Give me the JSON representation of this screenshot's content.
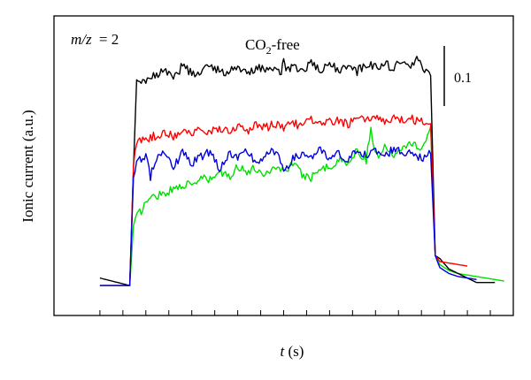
{
  "chart_data": {
    "type": "line",
    "annotation_mz_var": "m/z",
    "annotation_mz_value": "= 2",
    "title_pre": "CO",
    "title_sub": "2",
    "title_post": "-free",
    "scale_bar_label": "0.1",
    "scale_bar_value": 0.1,
    "xlabel_var": "t",
    "xlabel_unit": " (s)",
    "ylabel": "Ionic current (a.u.)",
    "xlim": [
      0,
      100
    ],
    "ylim": [
      0,
      1
    ],
    "x_minor_ticks": [
      10,
      15,
      20,
      25,
      30,
      35,
      40,
      45,
      50,
      55,
      60,
      65,
      70,
      75,
      80,
      85,
      90,
      95
    ],
    "grid": false,
    "legend": "none",
    "series": [
      {
        "color": "#000000",
        "x": [
          10,
          16.5,
          17.3,
          18,
          20,
          22,
          24,
          26,
          28,
          30,
          32,
          34,
          36,
          38,
          40,
          42,
          44,
          46,
          48,
          49.5,
          50,
          50.5,
          52,
          54,
          56,
          58,
          60,
          62,
          64,
          66,
          68,
          70,
          72,
          74,
          76,
          78,
          79,
          80,
          82,
          83,
          84,
          86,
          88,
          90,
          92,
          94,
          96
        ],
        "y": [
          0.125,
          0.1,
          0.49,
          0.775,
          0.79,
          0.8,
          0.825,
          0.79,
          0.835,
          0.81,
          0.805,
          0.84,
          0.815,
          0.81,
          0.84,
          0.8,
          0.83,
          0.82,
          0.815,
          0.81,
          0.87,
          0.82,
          0.83,
          0.815,
          0.845,
          0.81,
          0.84,
          0.82,
          0.83,
          0.815,
          0.84,
          0.83,
          0.845,
          0.82,
          0.86,
          0.83,
          0.87,
          0.825,
          0.8,
          0.2,
          0.19,
          0.155,
          0.14,
          0.125,
          0.11,
          0.11,
          0.11
        ]
      },
      {
        "color": "#ff0000",
        "x": [
          10,
          16.5,
          17.3,
          18,
          20,
          22,
          24,
          26,
          28,
          30,
          32,
          34,
          36,
          38,
          40,
          42,
          44,
          46,
          48,
          50,
          52,
          54,
          56,
          58,
          60,
          62,
          64,
          66,
          68,
          70,
          72,
          74,
          76,
          78,
          80,
          82,
          83,
          84,
          86,
          88,
          90
        ],
        "y": [
          0.1,
          0.1,
          0.5,
          0.58,
          0.59,
          0.6,
          0.61,
          0.6,
          0.62,
          0.61,
          0.615,
          0.61,
          0.625,
          0.62,
          0.63,
          0.61,
          0.64,
          0.625,
          0.64,
          0.63,
          0.645,
          0.63,
          0.655,
          0.635,
          0.645,
          0.65,
          0.64,
          0.655,
          0.65,
          0.665,
          0.65,
          0.66,
          0.65,
          0.655,
          0.645,
          0.64,
          0.2,
          0.18,
          0.175,
          0.17,
          0.165
        ]
      },
      {
        "color": "#00e000",
        "x": [
          10,
          16.5,
          17.3,
          18,
          19,
          20,
          22,
          24,
          26,
          28,
          30,
          32,
          34,
          36,
          38,
          40,
          42,
          44,
          46,
          48,
          50,
          52,
          54,
          56,
          58,
          60,
          62,
          64,
          66,
          68,
          69,
          70,
          72,
          74,
          76,
          78,
          80,
          82,
          83,
          84,
          86,
          88,
          90,
          92,
          94,
          96,
          98
        ],
        "y": [
          0.1,
          0.1,
          0.3,
          0.33,
          0.35,
          0.38,
          0.4,
          0.41,
          0.42,
          0.44,
          0.43,
          0.46,
          0.45,
          0.48,
          0.46,
          0.5,
          0.48,
          0.49,
          0.47,
          0.5,
          0.48,
          0.51,
          0.47,
          0.46,
          0.5,
          0.49,
          0.52,
          0.51,
          0.55,
          0.52,
          0.63,
          0.53,
          0.56,
          0.54,
          0.57,
          0.58,
          0.55,
          0.63,
          0.2,
          0.17,
          0.15,
          0.14,
          0.135,
          0.13,
          0.125,
          0.12,
          0.115
        ]
      },
      {
        "color": "#0000dd",
        "x": [
          10,
          16.5,
          17.3,
          18,
          20,
          21,
          22,
          24,
          26,
          28,
          30,
          32,
          34,
          36,
          38,
          40,
          42,
          44,
          46,
          48,
          50,
          52,
          54,
          56,
          58,
          60,
          62,
          64,
          66,
          68,
          70,
          72,
          74,
          76,
          78,
          80,
          82,
          83,
          84,
          86,
          88,
          90,
          92
        ],
        "y": [
          0.1,
          0.1,
          0.46,
          0.52,
          0.53,
          0.465,
          0.52,
          0.55,
          0.5,
          0.54,
          0.51,
          0.53,
          0.55,
          0.49,
          0.54,
          0.52,
          0.55,
          0.51,
          0.53,
          0.55,
          0.49,
          0.52,
          0.54,
          0.53,
          0.55,
          0.52,
          0.54,
          0.51,
          0.56,
          0.53,
          0.55,
          0.53,
          0.56,
          0.54,
          0.55,
          0.52,
          0.54,
          0.2,
          0.16,
          0.14,
          0.13,
          0.125,
          0.12
        ]
      }
    ]
  }
}
